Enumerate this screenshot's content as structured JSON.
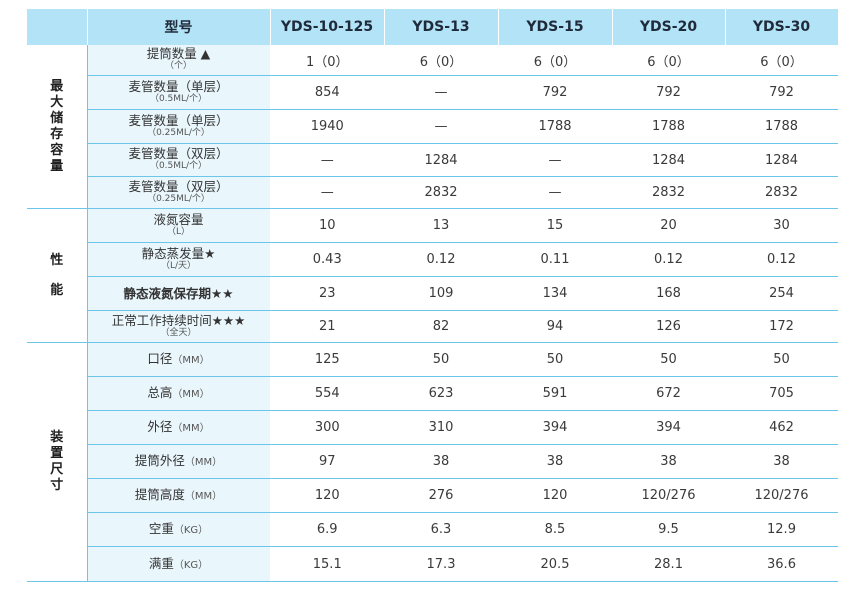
{
  "header": {
    "model_label": "型号",
    "models": [
      "YDS-10-125",
      "YDS-13",
      "YDS-15",
      "YDS-20",
      "YDS-30"
    ]
  },
  "sections": {
    "storage": {
      "chars": [
        "最",
        "大",
        "储",
        "存",
        "容",
        "量"
      ]
    },
    "performance": {
      "chars": [
        "性",
        "能"
      ]
    },
    "dimensions": {
      "chars": [
        "装",
        "置",
        "尺",
        "寸"
      ]
    }
  },
  "rows": [
    {
      "label": "提筒数量 ▲",
      "sub": "（个）",
      "values": [
        "1（0）",
        "6（0）",
        "6（0）",
        "6（0）",
        "6（0）"
      ]
    },
    {
      "label": "麦管数量（单层）",
      "sub": "（0.5ML/个）",
      "values": [
        "854",
        "—",
        "792",
        "792",
        "792"
      ]
    },
    {
      "label": "麦管数量（单层）",
      "sub": "（0.25ML/个）",
      "values": [
        "1940",
        "—",
        "1788",
        "1788",
        "1788"
      ]
    },
    {
      "label": "麦管数量（双层）",
      "sub": "（0.5ML/个）",
      "values": [
        "—",
        "1284",
        "—",
        "1284",
        "1284"
      ]
    },
    {
      "label": "麦管数量（双层）",
      "sub": "（0.25ML/个）",
      "values": [
        "—",
        "2832",
        "—",
        "2832",
        "2832"
      ]
    },
    {
      "label": "液氮容量",
      "sub": "（L）",
      "values": [
        "10",
        "13",
        "15",
        "20",
        "30"
      ]
    },
    {
      "label": "静态蒸发量★",
      "sub": "（L/天）",
      "values": [
        "0.43",
        "0.12",
        "0.11",
        "0.12",
        "0.12"
      ]
    },
    {
      "label": "静态液氮保存期★★",
      "sub": "",
      "values": [
        "23",
        "109",
        "134",
        "168",
        "254"
      ]
    },
    {
      "label": "正常工作持续时间★★★",
      "sub": "（全天）",
      "values": [
        "21",
        "82",
        "94",
        "126",
        "172"
      ]
    },
    {
      "label": "口径",
      "unit": "（MM）",
      "values": [
        "125",
        "50",
        "50",
        "50",
        "50"
      ]
    },
    {
      "label": "总高",
      "unit": "（MM）",
      "values": [
        "554",
        "623",
        "591",
        "672",
        "705"
      ]
    },
    {
      "label": "外径",
      "unit": "（MM）",
      "values": [
        "300",
        "310",
        "394",
        "394",
        "462"
      ]
    },
    {
      "label": "提筒外径",
      "unit": "（MM）",
      "values": [
        "97",
        "38",
        "38",
        "38",
        "38"
      ]
    },
    {
      "label": "提筒高度",
      "unit": "（MM）",
      "values": [
        "120",
        "276",
        "120",
        "120/276",
        "120/276"
      ]
    },
    {
      "label": "空重",
      "unit": "（KG）",
      "values": [
        "6.9",
        "6.3",
        "8.5",
        "9.5",
        "12.9"
      ]
    },
    {
      "label": "满重",
      "unit": "（KG）",
      "values": [
        "15.1",
        "17.3",
        "20.5",
        "28.1",
        "36.6"
      ]
    }
  ],
  "colors": {
    "header_bg": "#b3e3f6",
    "label_bg": "#e9f6fc",
    "grid_line": "#6cc6ea"
  }
}
